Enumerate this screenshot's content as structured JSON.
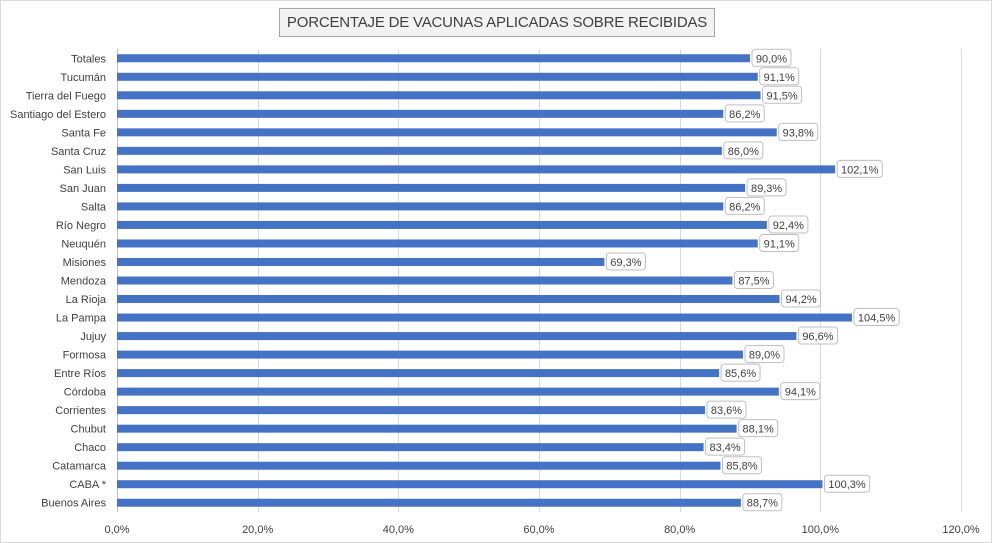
{
  "chart_data": {
    "type": "bar",
    "orientation": "horizontal",
    "title": "PORCENTAJE DE VACUNAS APLICADAS SOBRE RECIBIDAS",
    "categories": [
      "Totales",
      "Tucumán",
      "Tierra del Fuego",
      "Santiago del Estero",
      "Santa Fe",
      "Santa Cruz",
      "San Luis",
      "San Juan",
      "Salta",
      "Río Negro",
      "Neuquén",
      "Misiones",
      "Mendoza",
      "La Rioja",
      "La Pampa",
      "Jujuy",
      "Formosa",
      "Entre Ríos",
      "Córdoba",
      "Corrientes",
      "Chubut",
      "Chaco",
      "Catamarca",
      "CABA *",
      "Buenos Aires"
    ],
    "values": [
      90.0,
      91.1,
      91.5,
      86.2,
      93.8,
      86.0,
      102.1,
      89.3,
      86.2,
      92.4,
      91.1,
      69.3,
      87.5,
      94.2,
      104.5,
      96.6,
      89.0,
      85.6,
      94.1,
      83.6,
      88.1,
      83.4,
      85.8,
      100.3,
      88.7
    ],
    "data_labels": [
      "90,0%",
      "91,1%",
      "91,5%",
      "86,2%",
      "93,8%",
      "86,0%",
      "102,1%",
      "89,3%",
      "86,2%",
      "92,4%",
      "91,1%",
      "69,3%",
      "87,5%",
      "94,2%",
      "104,5%",
      "96,6%",
      "89,0%",
      "85,6%",
      "94,1%",
      "83,6%",
      "88,1%",
      "83,4%",
      "85,8%",
      "100,3%",
      "88,7%"
    ],
    "xlim": [
      0,
      120
    ],
    "xticks": [
      0,
      20,
      40,
      60,
      80,
      100,
      120
    ],
    "xtick_labels": [
      "0,0%",
      "20,0%",
      "40,0%",
      "60,0%",
      "80,0%",
      "100,0%",
      "120,0%"
    ],
    "grid": "vertical",
    "legend": "none",
    "bar_color": "#4472c4",
    "gridline_color": "#d9d9d9"
  }
}
